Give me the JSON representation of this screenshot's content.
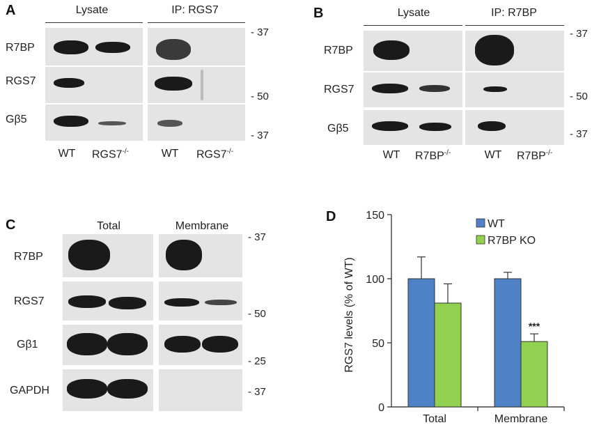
{
  "panel_a": {
    "letter": "A",
    "lysate_header": "Lysate",
    "ip_header": "IP: RGS7",
    "rows": [
      "R7BP",
      "RGS7",
      "Gβ5"
    ],
    "lanes": [
      "WT",
      "RGS7",
      "WT",
      "RGS7"
    ],
    "lane_sup": "-/-",
    "markers": [
      "- 37",
      "- 50",
      "- 37"
    ]
  },
  "panel_b": {
    "letter": "B",
    "lysate_header": "Lysate",
    "ip_header": "IP: R7BP",
    "rows": [
      "R7BP",
      "RGS7",
      "Gβ5"
    ],
    "lanes": [
      "WT",
      "R7BP",
      "WT",
      "R7BP"
    ],
    "lane_sup": "-/-",
    "markers": [
      "- 37",
      "- 50",
      "- 37"
    ]
  },
  "panel_c": {
    "letter": "C",
    "total_header": "Total",
    "membrane_header": "Membrane",
    "rows": [
      "R7BP",
      "RGS7",
      "Gβ1",
      "GAPDH"
    ],
    "markers": [
      "- 37",
      "- 50",
      "- 25",
      "- 37"
    ]
  },
  "chart_data": {
    "type": "bar",
    "panel_letter": "D",
    "categories": [
      "Total",
      "Membrane"
    ],
    "series": [
      {
        "name": "WT",
        "color": "#4f81c6",
        "values": [
          100,
          100
        ],
        "errors": [
          17,
          5
        ]
      },
      {
        "name": "R7BP KO",
        "color": "#92d050",
        "values": [
          81,
          51
        ],
        "errors": [
          15,
          6
        ]
      }
    ],
    "ylabel": "RGS7 levels (% of WT)",
    "ylim": [
      0,
      150
    ],
    "yticks": [
      0,
      50,
      100,
      150
    ],
    "annotation": "***",
    "legend_position": "top-right"
  }
}
